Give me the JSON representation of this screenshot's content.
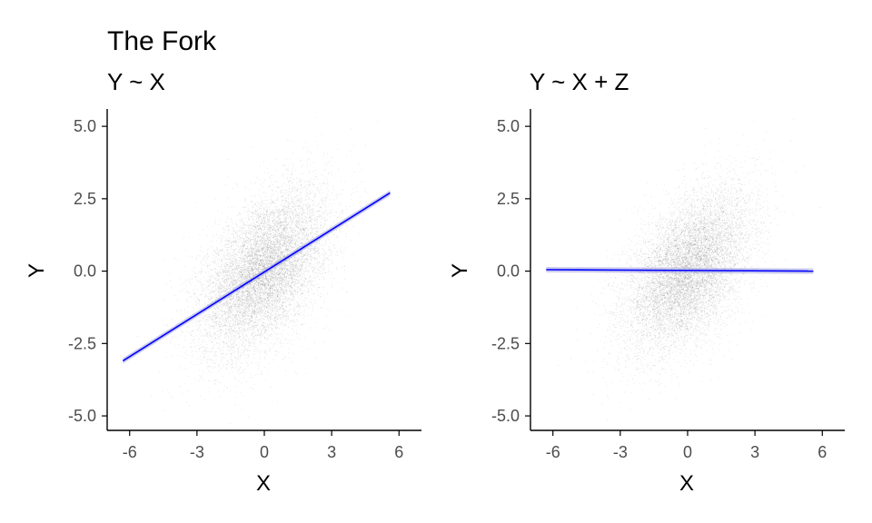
{
  "figure_title": "The Fork",
  "colors": {
    "points": "#000000",
    "fit_line": "#0000ff",
    "ribbon": "#9999dd",
    "axis": "#000000",
    "tick_text": "#4d4d4d"
  },
  "chart_data": [
    {
      "type": "scatter",
      "title": "Y ~ X",
      "xlabel": "X",
      "ylabel": "Y",
      "xlim": [
        -7,
        7
      ],
      "ylim": [
        -5.5,
        5.6
      ],
      "xticks": [
        -6,
        -3,
        0,
        3,
        6
      ],
      "xtick_labels": [
        "-6",
        "-3",
        "0",
        "3",
        "6"
      ],
      "yticks": [
        -5.0,
        -2.5,
        0.0,
        2.5,
        5.0
      ],
      "ytick_labels": [
        "-5.0",
        "-2.5",
        "0.0",
        "2.5",
        "5.0"
      ],
      "grid": false,
      "points": {
        "n": 10000,
        "x_mean": 0,
        "x_sd": 1.4,
        "y_mean": 0,
        "y_sd": 1.4,
        "correlation": 0.5,
        "alpha": 0.1,
        "description": "dense cloud of translucent points centered near (0, 0)"
      },
      "fit_line": {
        "x": [
          -6.3,
          5.6
        ],
        "y": [
          -3.1,
          2.7
        ]
      }
    },
    {
      "type": "scatter",
      "title": "Y ~ X + Z",
      "xlabel": "X",
      "ylabel": "Y",
      "xlim": [
        -7,
        7
      ],
      "ylim": [
        -5.5,
        5.6
      ],
      "xticks": [
        -6,
        -3,
        0,
        3,
        6
      ],
      "xtick_labels": [
        "-6",
        "-3",
        "0",
        "3",
        "6"
      ],
      "yticks": [
        -5.0,
        -2.5,
        0.0,
        2.5,
        5.0
      ],
      "ytick_labels": [
        "-5.0",
        "-2.5",
        "0.0",
        "2.5",
        "5.0"
      ],
      "grid": false,
      "points": {
        "n": 10000,
        "x_mean": 0,
        "x_sd": 1.4,
        "y_mean": 0,
        "y_sd": 1.4,
        "correlation": 0.5,
        "alpha": 0.1,
        "description": "dense cloud of translucent points centered near (0, 0)"
      },
      "fit_line": {
        "x": [
          -6.3,
          5.6
        ],
        "y": [
          0.05,
          0.0
        ]
      }
    }
  ]
}
